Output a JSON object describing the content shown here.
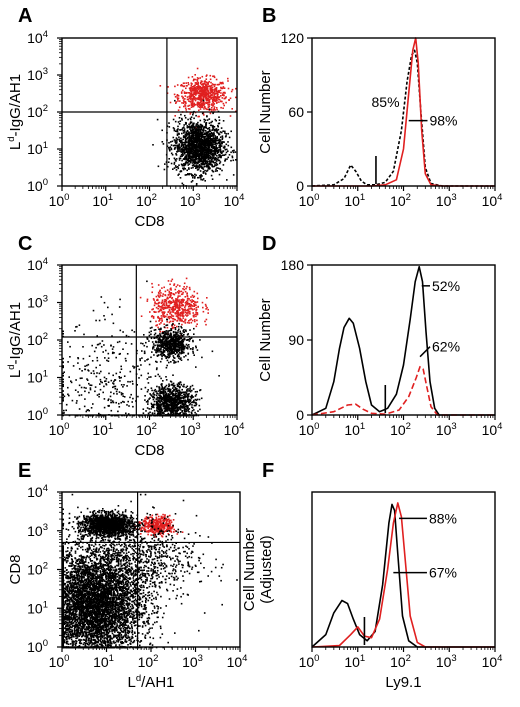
{
  "chart_data": [
    {
      "panel": "A",
      "type": "scatter",
      "xlabel": "CD8",
      "ylabel": "Ld-IgG/AH1",
      "xscale": "log",
      "yscale": "log",
      "xlim": [
        1,
        10000
      ],
      "ylim": [
        1,
        10000
      ],
      "quadrant_lines": {
        "x": 250,
        "y": 100
      },
      "clusters": [
        {
          "color": "#e02020",
          "center": [
            1600,
            300
          ],
          "spread": [
            0.28,
            0.22
          ],
          "n": 650
        },
        {
          "color": "#000000",
          "center": [
            1300,
            12
          ],
          "spread": [
            0.28,
            0.35
          ],
          "n": 1700
        }
      ]
    },
    {
      "panel": "B",
      "type": "line",
      "xlabel": "",
      "ylabel": "Cell Number",
      "xscale": "log",
      "xlim": [
        1,
        10000
      ],
      "ylim": [
        0,
        120
      ],
      "yticks": [
        0,
        60,
        120
      ],
      "marker_x": 25,
      "series": [
        {
          "color": "#000000",
          "dash": "3,2",
          "points": [
            [
              1,
              0
            ],
            [
              3,
              1
            ],
            [
              5,
              6
            ],
            [
              7,
              17
            ],
            [
              9,
              12
            ],
            [
              12,
              4
            ],
            [
              16,
              1
            ],
            [
              25,
              1
            ],
            [
              40,
              3
            ],
            [
              60,
              12
            ],
            [
              90,
              45
            ],
            [
              120,
              85
            ],
            [
              150,
              106
            ],
            [
              175,
              110
            ],
            [
              200,
              100
            ],
            [
              240,
              60
            ],
            [
              300,
              15
            ],
            [
              400,
              2
            ],
            [
              700,
              0
            ],
            [
              10000,
              0
            ]
          ]
        },
        {
          "color": "#e02020",
          "points": [
            [
              1,
              0
            ],
            [
              20,
              0
            ],
            [
              40,
              1
            ],
            [
              70,
              5
            ],
            [
              100,
              30
            ],
            [
              130,
              75
            ],
            [
              160,
              110
            ],
            [
              185,
              121
            ],
            [
              210,
              100
            ],
            [
              250,
              45
            ],
            [
              300,
              10
            ],
            [
              400,
              1
            ],
            [
              700,
              0
            ],
            [
              10000,
              0
            ]
          ]
        }
      ],
      "annotations": [
        {
          "text": "85%",
          "x": 20,
          "y": 68,
          "leader_to": [
            100,
            68
          ]
        },
        {
          "text": "98%",
          "x": 370,
          "y": 53,
          "leader_from": [
            130,
            53
          ]
        }
      ]
    },
    {
      "panel": "C",
      "type": "scatter",
      "xlabel": "CD8",
      "ylabel": "Ld-IgG/AH1",
      "xscale": "log",
      "yscale": "log",
      "xlim": [
        1,
        10000
      ],
      "ylim": [
        1,
        10000
      ],
      "quadrant_lines": {
        "x": 50,
        "y": 120
      },
      "clusters": [
        {
          "color": "#e02020",
          "center": [
            400,
            800
          ],
          "spread": [
            0.28,
            0.28
          ],
          "n": 500
        },
        {
          "color": "#000000",
          "center": [
            300,
            80
          ],
          "spread": [
            0.22,
            0.2
          ],
          "n": 650
        },
        {
          "color": "#000000",
          "center": [
            320,
            2.2
          ],
          "spread": [
            0.26,
            0.25
          ],
          "n": 950
        },
        {
          "color": "#000000",
          "center": [
            12,
            6
          ],
          "spread": [
            0.7,
            0.85
          ],
          "n": 380
        }
      ]
    },
    {
      "panel": "D",
      "type": "line",
      "xlabel": "",
      "ylabel": "Cell Number",
      "xscale": "log",
      "xlim": [
        1,
        10000
      ],
      "ylim": [
        0,
        180
      ],
      "yticks": [
        0,
        90,
        180
      ],
      "marker_x": 40,
      "series": [
        {
          "color": "#000000",
          "points": [
            [
              1,
              0
            ],
            [
              2,
              8
            ],
            [
              3,
              40
            ],
            [
              4,
              80
            ],
            [
              5,
              105
            ],
            [
              6.5,
              116
            ],
            [
              8,
              110
            ],
            [
              11,
              80
            ],
            [
              15,
              40
            ],
            [
              20,
              12
            ],
            [
              30,
              4
            ],
            [
              45,
              8
            ],
            [
              70,
              25
            ],
            [
              100,
              60
            ],
            [
              140,
              115
            ],
            [
              180,
              160
            ],
            [
              220,
              178
            ],
            [
              260,
              160
            ],
            [
              310,
              100
            ],
            [
              380,
              40
            ],
            [
              480,
              8
            ],
            [
              600,
              0
            ],
            [
              10000,
              0
            ]
          ]
        },
        {
          "color": "#e02020",
          "dash": "6,3",
          "points": [
            [
              1,
              0
            ],
            [
              3,
              4
            ],
            [
              6,
              12
            ],
            [
              9,
              13
            ],
            [
              13,
              7
            ],
            [
              20,
              2
            ],
            [
              40,
              1
            ],
            [
              80,
              6
            ],
            [
              130,
              22
            ],
            [
              190,
              45
            ],
            [
              230,
              58
            ],
            [
              270,
              55
            ],
            [
              320,
              35
            ],
            [
              400,
              10
            ],
            [
              550,
              0
            ],
            [
              10000,
              0
            ]
          ]
        }
      ],
      "annotations": [
        {
          "text": "52%",
          "x": 420,
          "y": 155,
          "leader_from": [
            250,
            155
          ]
        },
        {
          "text": "62%",
          "x": 420,
          "y": 82,
          "leader_from": [
            230,
            70
          ]
        }
      ]
    },
    {
      "panel": "E",
      "type": "scatter",
      "xlabel": "Ld/AH1",
      "ylabel": "CD8",
      "xscale": "log",
      "yscale": "log",
      "xlim": [
        1,
        10000
      ],
      "ylim": [
        1,
        10000
      ],
      "quadrant_lines": {
        "x": 50,
        "y": 500
      },
      "clusters": [
        {
          "color": "#000000",
          "center": [
            10,
            1500
          ],
          "spread": [
            0.28,
            0.14
          ],
          "n": 1500
        },
        {
          "color": "#e02020",
          "center": [
            140,
            1400
          ],
          "spread": [
            0.18,
            0.12
          ],
          "n": 380
        },
        {
          "color": "#000000",
          "center": [
            5,
            12
          ],
          "spread": [
            0.55,
            0.7
          ],
          "n": 5200
        },
        {
          "color": "#000000",
          "center": [
            40,
            200
          ],
          "spread": [
            0.7,
            0.55
          ],
          "n": 900
        }
      ]
    },
    {
      "panel": "F",
      "type": "line",
      "xlabel": "Ly9.1",
      "ylabel": "Cell Number (Adjusted)",
      "xscale": "log",
      "xlim": [
        1,
        10000
      ],
      "ylim": [
        0,
        100
      ],
      "marker_x": 14,
      "series": [
        {
          "color": "#000000",
          "points": [
            [
              1,
              0
            ],
            [
              2,
              8
            ],
            [
              3,
              22
            ],
            [
              4.5,
              30
            ],
            [
              6,
              28
            ],
            [
              8,
              18
            ],
            [
              11,
              8
            ],
            [
              16,
              4
            ],
            [
              24,
              10
            ],
            [
              35,
              40
            ],
            [
              48,
              80
            ],
            [
              56,
              92
            ],
            [
              64,
              88
            ],
            [
              75,
              60
            ],
            [
              95,
              20
            ],
            [
              130,
              4
            ],
            [
              200,
              0
            ],
            [
              10000,
              0
            ]
          ]
        },
        {
          "color": "#e02020",
          "points": [
            [
              1,
              0
            ],
            [
              4,
              1
            ],
            [
              7,
              8
            ],
            [
              10,
              13
            ],
            [
              14,
              7
            ],
            [
              20,
              6
            ],
            [
              30,
              18
            ],
            [
              45,
              50
            ],
            [
              60,
              80
            ],
            [
              75,
              93
            ],
            [
              90,
              84
            ],
            [
              110,
              55
            ],
            [
              140,
              20
            ],
            [
              200,
              3
            ],
            [
              300,
              0
            ],
            [
              10000,
              0
            ]
          ]
        }
      ],
      "annotations": [
        {
          "text": "88%",
          "x": 360,
          "y": 83,
          "leader_from": [
            80,
            83
          ]
        },
        {
          "text": "67%",
          "x": 360,
          "y": 48,
          "leader_from": [
            60,
            48
          ]
        }
      ]
    }
  ]
}
